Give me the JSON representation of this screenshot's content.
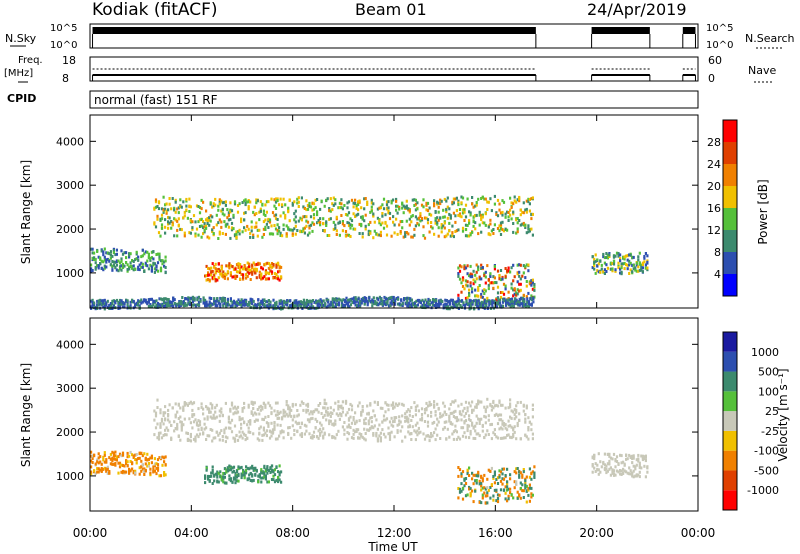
{
  "header": {
    "station": "Kodiak (fitACF)",
    "beam": "Beam 01",
    "date": "24/Apr/2019",
    "mode": "normal (fast) 151 RF"
  },
  "summary_panels": {
    "nsky_label": "N.Sky",
    "nsearch_label": "N.Search",
    "noise_ticks": [
      "10^5",
      "10^0"
    ],
    "freq_label": "Freq.",
    "freq_unit": "[MHz]",
    "freq_ticks": [
      "18",
      "8"
    ],
    "nave_label": "Nave",
    "nave_ticks": [
      "60",
      "0"
    ],
    "cpid_label": "CPID"
  },
  "colors": {
    "power_scale": [
      "#0000ff",
      "#2d4fb0",
      "#3c8a6e",
      "#55c03a",
      "#f0c000",
      "#f08000",
      "#e04000",
      "#ff0000"
    ],
    "velocity_scale": [
      "#ff0000",
      "#e04000",
      "#f08000",
      "#f0c000",
      "#c8c8b8",
      "#55c03a",
      "#3c8a6e",
      "#2d4fb0",
      "#1a1aa0"
    ]
  },
  "chart_data": [
    {
      "type": "heatmap",
      "name": "power",
      "xlabel": "Time UT",
      "ylabel": "Slant Range [km]",
      "xlim": [
        0,
        24
      ],
      "ylim": [
        200,
        4600
      ],
      "x_ticks": [
        "00:00",
        "04:00",
        "08:00",
        "12:00",
        "16:00",
        "20:00",
        "00:00"
      ],
      "y_ticks": [
        1000,
        2000,
        3000,
        4000
      ],
      "colorbar_label": "Power [dB]",
      "colorbar_ticks": [
        4,
        8,
        12,
        16,
        20,
        24,
        28
      ],
      "colorbar_range": [
        0,
        32
      ],
      "features": [
        {
          "band": "F-region echo",
          "t_start": 2.5,
          "t_end": 17.5,
          "range_km": [
            1800,
            2700
          ],
          "power_db": [
            8,
            22
          ]
        },
        {
          "band": "early echo",
          "t_start": 0.0,
          "t_end": 3.0,
          "range_km": [
            1000,
            1500
          ],
          "power_db": [
            4,
            16
          ]
        },
        {
          "band": "strong patch",
          "t_start": 4.5,
          "t_end": 7.5,
          "range_km": [
            800,
            1200
          ],
          "power_db": [
            16,
            30
          ]
        },
        {
          "band": "late echo",
          "t_start": 14.5,
          "t_end": 17.5,
          "range_km": [
            400,
            1200
          ],
          "power_db": [
            4,
            30
          ]
        },
        {
          "band": "near range",
          "t_start": 0.0,
          "t_end": 17.5,
          "range_km": [
            200,
            400
          ],
          "power_db": [
            4,
            12
          ]
        },
        {
          "band": "post-gap echo",
          "t_start": 19.8,
          "t_end": 22.0,
          "range_km": [
            1000,
            1500
          ],
          "power_db": [
            4,
            20
          ]
        }
      ]
    },
    {
      "type": "heatmap",
      "name": "velocity",
      "xlabel": "Time UT",
      "ylabel": "Slant Range [km]",
      "xlim": [
        0,
        24
      ],
      "ylim": [
        200,
        4600
      ],
      "x_ticks": [
        "00:00",
        "04:00",
        "08:00",
        "12:00",
        "16:00",
        "20:00",
        "00:00"
      ],
      "y_ticks": [
        1000,
        2000,
        3000,
        4000
      ],
      "colorbar_label": "Velocity [m s⁻¹]",
      "colorbar_ticks": [
        1000,
        500,
        100,
        25,
        -25,
        -100,
        -500,
        -1000
      ],
      "features": [
        {
          "band": "ground scatter",
          "t_start": 2.5,
          "t_end": 17.5,
          "range_km": [
            1800,
            2700
          ],
          "velocity": [
            -25,
            25
          ]
        },
        {
          "band": "early echo",
          "t_start": 0.0,
          "t_end": 3.0,
          "range_km": [
            1000,
            1500
          ],
          "velocity": [
            -500,
            25
          ]
        },
        {
          "band": "mid patch",
          "t_start": 4.5,
          "t_end": 7.5,
          "range_km": [
            800,
            1200
          ],
          "velocity": [
            25,
            500
          ]
        },
        {
          "band": "late echo",
          "t_start": 14.5,
          "t_end": 17.5,
          "range_km": [
            400,
            1200
          ],
          "velocity": [
            -500,
            500
          ]
        },
        {
          "band": "post-gap echo",
          "t_start": 19.8,
          "t_end": 22.0,
          "range_km": [
            1000,
            1500
          ],
          "velocity": [
            -25,
            25
          ]
        }
      ]
    }
  ]
}
